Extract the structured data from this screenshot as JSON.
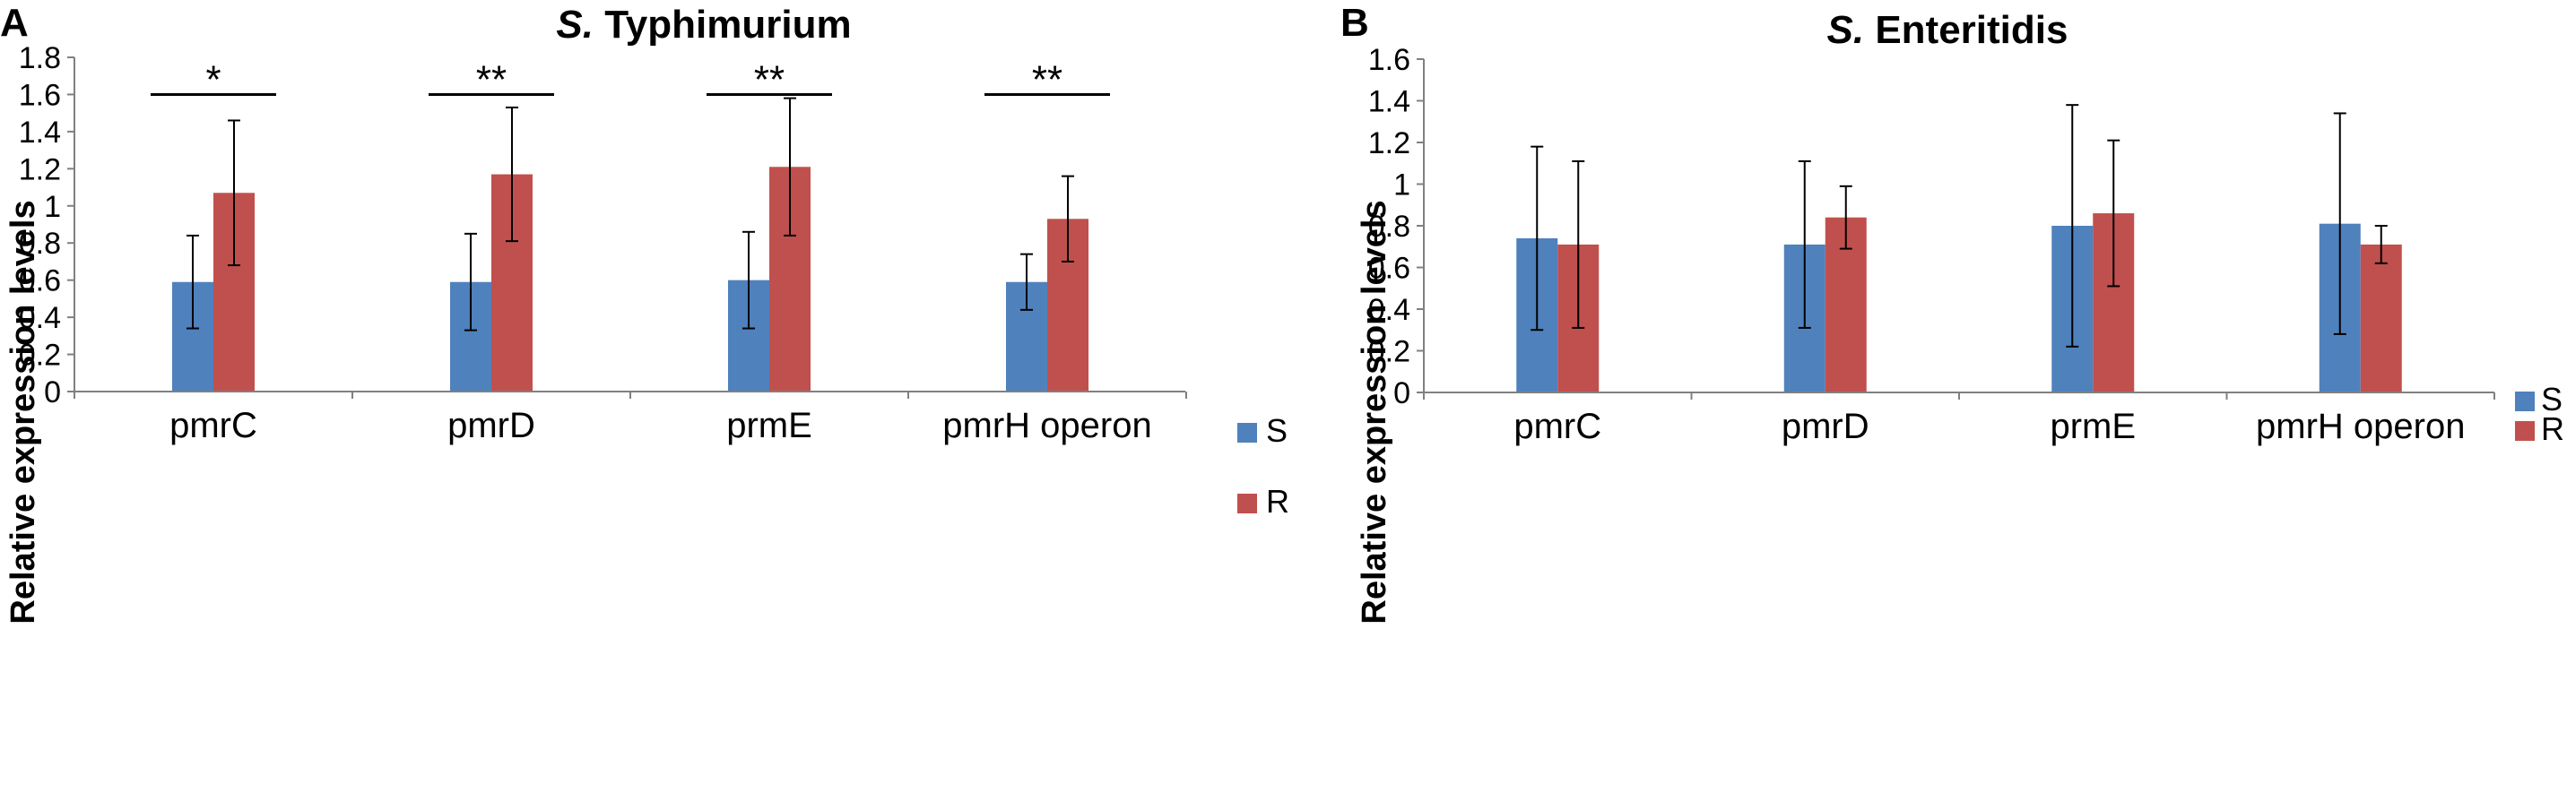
{
  "colors": {
    "S": "#4f81bd",
    "R": "#c0504d",
    "axis": "#808080",
    "error": "#000000"
  },
  "chart_data": [
    {
      "panel": "A",
      "type": "bar",
      "title_italic": "S.",
      "title_rest": " Typhimurium",
      "ylabel": "Relative expression levels",
      "xlabel": "",
      "ylim": [
        0,
        1.8
      ],
      "yticks": [
        0,
        0.2,
        0.4,
        0.6,
        0.8,
        1,
        1.2,
        1.4,
        1.6,
        1.8
      ],
      "ytick_labels": [
        "0",
        "0.2",
        "0.4",
        "0.6",
        "0.8",
        "1",
        "1.2",
        "1.4",
        "1.6",
        "1.8"
      ],
      "categories": [
        "pmrC",
        "pmrD",
        "prmE",
        "pmrH operon"
      ],
      "series": [
        {
          "name": "S",
          "values": [
            0.59,
            0.59,
            0.6,
            0.59
          ],
          "err_low": [
            0.34,
            0.33,
            0.34,
            0.44
          ],
          "err_high": [
            0.84,
            0.85,
            0.86,
            0.74
          ]
        },
        {
          "name": "R",
          "values": [
            1.07,
            1.17,
            1.21,
            0.93
          ],
          "err_low": [
            0.68,
            0.81,
            0.84,
            0.7
          ],
          "err_high": [
            1.46,
            1.53,
            1.58,
            1.16
          ]
        }
      ],
      "significance": [
        "*",
        "**",
        "**",
        "**"
      ],
      "significance_level": 1.6,
      "legend_position": "right"
    },
    {
      "panel": "B",
      "type": "bar",
      "title_italic": "S.",
      "title_rest": " Enteritidis",
      "ylabel": "Relative expression levels",
      "xlabel": "",
      "ylim": [
        0,
        1.6
      ],
      "yticks": [
        0,
        0.2,
        0.4,
        0.6,
        0.8,
        1,
        1.2,
        1.4,
        1.6
      ],
      "ytick_labels": [
        "0",
        "0.2",
        "0.4",
        "0.6",
        "0.8",
        "1",
        "1.2",
        "1.4",
        "1.6"
      ],
      "categories": [
        "pmrC",
        "pmrD",
        "prmE",
        "pmrH operon"
      ],
      "series": [
        {
          "name": "S",
          "values": [
            0.74,
            0.71,
            0.8,
            0.81
          ],
          "err_low": [
            0.3,
            0.31,
            0.22,
            0.28
          ],
          "err_high": [
            1.18,
            1.11,
            1.38,
            1.34
          ]
        },
        {
          "name": "R",
          "values": [
            0.71,
            0.84,
            0.86,
            0.71
          ],
          "err_low": [
            0.31,
            0.69,
            0.51,
            0.62
          ],
          "err_high": [
            1.11,
            0.99,
            1.21,
            0.8
          ]
        }
      ],
      "significance": [],
      "legend_position": "right"
    }
  ]
}
